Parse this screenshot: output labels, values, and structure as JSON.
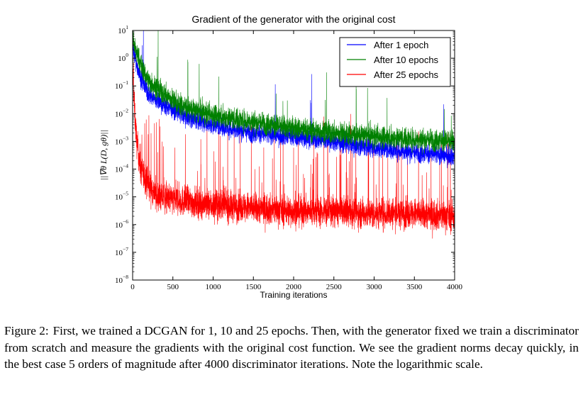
{
  "chart_data": {
    "type": "line",
    "title": "Gradient of the generator with the original cost",
    "xlabel": "Training iterations",
    "ylabel": "||∇θ L(D, gθ)||",
    "xlim": [
      0,
      4000
    ],
    "ylim": [
      1e-08,
      10
    ],
    "yscale": "log",
    "xticks": [
      0,
      500,
      1000,
      1500,
      2000,
      2500,
      3000,
      3500,
      4000
    ],
    "xtick_labels": [
      "0",
      "500",
      "1000",
      "1500",
      "2000",
      "2500",
      "3000",
      "3500",
      "4000"
    ],
    "yticks": [
      1e-08,
      1e-07,
      1e-06,
      1e-05,
      0.0001,
      0.001,
      0.01,
      0.1,
      1,
      10
    ],
    "ytick_labels": [
      {
        "base": "10",
        "exp": "−8"
      },
      {
        "base": "10",
        "exp": "−7"
      },
      {
        "base": "10",
        "exp": "−6"
      },
      {
        "base": "10",
        "exp": "−5"
      },
      {
        "base": "10",
        "exp": "−4"
      },
      {
        "base": "10",
        "exp": "−3"
      },
      {
        "base": "10",
        "exp": "−2"
      },
      {
        "base": "10",
        "exp": "−1"
      },
      {
        "base": "10",
        "exp": "0"
      },
      {
        "base": "10",
        "exp": "1"
      }
    ],
    "grid": false,
    "legend_position": "top-right",
    "series": [
      {
        "name": "After 1 epoch",
        "color": "#0000ff",
        "x": [
          0,
          20,
          50,
          100,
          150,
          200,
          300,
          400,
          500,
          600,
          800,
          1000,
          1200,
          1500,
          2000,
          2500,
          3000,
          3500,
          4000
        ],
        "values": [
          3,
          1.5,
          0.6,
          0.2,
          0.1,
          0.05,
          0.03,
          0.02,
          0.015,
          0.01,
          0.006,
          0.004,
          0.003,
          0.002,
          0.0015,
          0.001,
          0.0006,
          0.0004,
          0.0003
        ]
      },
      {
        "name": "After 10 epochs",
        "color": "#008000",
        "x": [
          0,
          20,
          50,
          100,
          150,
          200,
          300,
          400,
          500,
          600,
          800,
          1000,
          1200,
          1500,
          2000,
          2500,
          3000,
          3500,
          4000
        ],
        "values": [
          4,
          3,
          1.5,
          0.6,
          0.3,
          0.15,
          0.08,
          0.05,
          0.03,
          0.02,
          0.012,
          0.009,
          0.007,
          0.005,
          0.003,
          0.002,
          0.0015,
          0.0012,
          0.001
        ]
      },
      {
        "name": "After 25 epochs",
        "color": "#ff0000",
        "x": [
          0,
          20,
          50,
          100,
          200,
          300,
          500,
          1000,
          1500,
          2000,
          2500,
          3000,
          3500,
          4000
        ],
        "values": [
          0.5,
          0.02,
          0.001,
          0.0001,
          3e-05,
          1e-05,
          8e-06,
          5e-06,
          4e-06,
          3e-06,
          3e-06,
          2.5e-06,
          2.5e-06,
          2e-06
        ]
      }
    ]
  },
  "caption": {
    "number": "Figure 2:",
    "text": "First, we trained a DCGAN for 1, 10 and 25 epochs. Then, with the generator fixed we train a discriminator from scratch and measure the gradients with the original cost function. We see the gradient norms decay quickly, in the best case 5 orders of magnitude after 4000 discriminator iterations. Note the logarithmic scale."
  }
}
